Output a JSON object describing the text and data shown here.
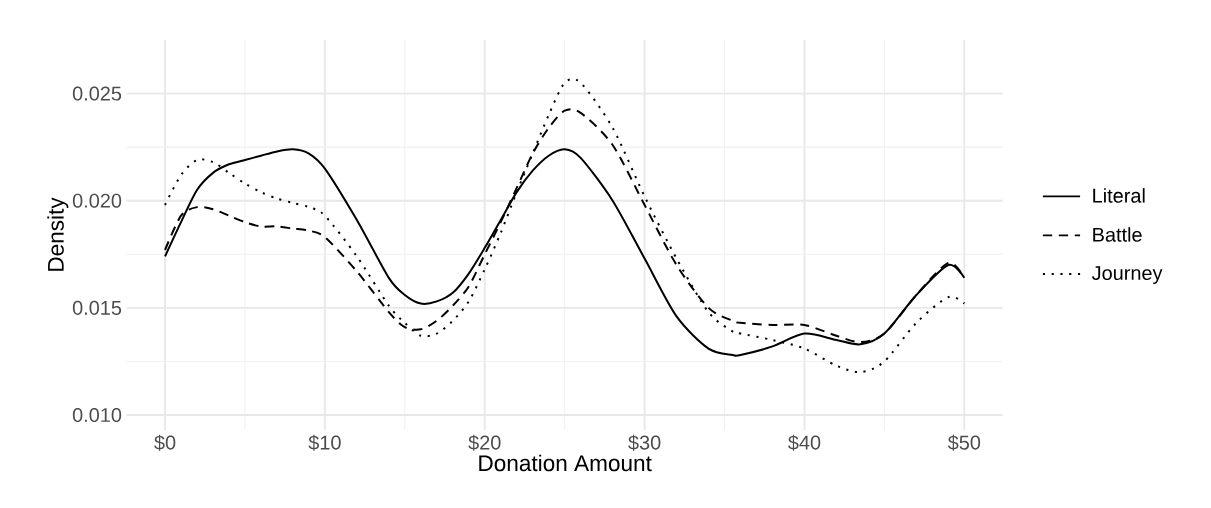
{
  "chart_data": {
    "type": "line",
    "xlabel": "Donation Amount",
    "ylabel": "Density",
    "grid": true,
    "legend": "right",
    "marker": "none",
    "xlim": [
      -2.4,
      52.4
    ],
    "ylim": [
      0.0093,
      0.0275
    ],
    "xticks": [
      {
        "value": 0,
        "label": "$0"
      },
      {
        "value": 10,
        "label": "$10"
      },
      {
        "value": 20,
        "label": "$20"
      },
      {
        "value": 30,
        "label": "$30"
      },
      {
        "value": 40,
        "label": "$40"
      },
      {
        "value": 50,
        "label": "$50"
      }
    ],
    "yticks": [
      {
        "value": 0.01,
        "label": "0.010"
      },
      {
        "value": 0.015,
        "label": "0.015"
      },
      {
        "value": 0.02,
        "label": "0.020"
      },
      {
        "value": 0.025,
        "label": "0.025"
      }
    ],
    "x": [
      0,
      1,
      2,
      3,
      4,
      5,
      6,
      7,
      8,
      9,
      10,
      12,
      14,
      15,
      16,
      17,
      18,
      19,
      20,
      21,
      22,
      23,
      24,
      25,
      26,
      28,
      30,
      32,
      34,
      35.5,
      36,
      38,
      40,
      42,
      43.5,
      45,
      47,
      49,
      50
    ],
    "series": [
      {
        "name": "Literal",
        "color": "#000000",
        "line_style": "solid",
        "values": [
          0.0174,
          0.019,
          0.0205,
          0.0213,
          0.0217,
          0.0219,
          0.0221,
          0.0223,
          0.0224,
          0.0222,
          0.0215,
          0.0191,
          0.0164,
          0.0156,
          0.0152,
          0.0153,
          0.0157,
          0.0166,
          0.0178,
          0.0191,
          0.0204,
          0.0214,
          0.0221,
          0.0224,
          0.022,
          0.02,
          0.0173,
          0.0146,
          0.0131,
          0.0128,
          0.0128,
          0.0132,
          0.0138,
          0.0135,
          0.0133,
          0.0138,
          0.0156,
          0.017,
          0.0164
        ]
      },
      {
        "name": "Battle",
        "color": "#000000",
        "line_style": "dashed",
        "values": [
          0.0177,
          0.0193,
          0.0197,
          0.0196,
          0.0193,
          0.019,
          0.0188,
          0.0188,
          0.0187,
          0.0186,
          0.0183,
          0.0167,
          0.0148,
          0.0141,
          0.014,
          0.0144,
          0.0151,
          0.016,
          0.0175,
          0.019,
          0.0206,
          0.0222,
          0.0234,
          0.0242,
          0.0241,
          0.0226,
          0.0198,
          0.017,
          0.015,
          0.0144,
          0.0143,
          0.0142,
          0.0142,
          0.0137,
          0.0134,
          0.0138,
          0.0156,
          0.0171,
          0.0164
        ]
      },
      {
        "name": "Journey",
        "color": "#000000",
        "line_style": "dotted",
        "values": [
          0.0198,
          0.0212,
          0.0219,
          0.0218,
          0.0213,
          0.0208,
          0.0204,
          0.0201,
          0.0199,
          0.0197,
          0.0193,
          0.0174,
          0.0151,
          0.0143,
          0.0137,
          0.0138,
          0.0144,
          0.0153,
          0.0168,
          0.0185,
          0.0204,
          0.0222,
          0.024,
          0.0255,
          0.0255,
          0.0234,
          0.0202,
          0.0173,
          0.0148,
          0.0139,
          0.0138,
          0.0135,
          0.0131,
          0.0123,
          0.012,
          0.0125,
          0.0143,
          0.0155,
          0.0152
        ]
      }
    ]
  }
}
